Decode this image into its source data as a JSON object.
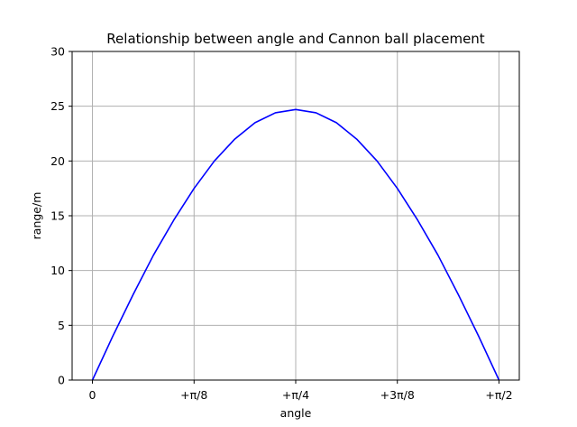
{
  "chart_data": {
    "type": "line",
    "title": "Relationship between angle and Cannon ball placement",
    "xlabel": "angle",
    "ylabel": "range/m",
    "xlim": [
      -0.0785,
      1.6493
    ],
    "ylim": [
      0,
      30
    ],
    "grid": true,
    "x_ticks": [
      {
        "value": 0,
        "label": "0"
      },
      {
        "value": 0.3927,
        "label": "+π/8"
      },
      {
        "value": 0.7854,
        "label": "+π/4"
      },
      {
        "value": 1.1781,
        "label": "+3π/8"
      },
      {
        "value": 1.5708,
        "label": "+π/2"
      }
    ],
    "y_ticks": [
      0,
      5,
      10,
      15,
      20,
      25,
      30
    ],
    "series": [
      {
        "color": "#0000ff",
        "x": [
          0,
          0.0785,
          0.1571,
          0.2356,
          0.3142,
          0.3927,
          0.4712,
          0.5498,
          0.6283,
          0.7069,
          0.7854,
          0.8639,
          0.9425,
          1.021,
          1.0996,
          1.1781,
          1.2566,
          1.3352,
          1.4137,
          1.4923,
          1.5708
        ],
        "y": [
          0,
          4.0,
          7.8,
          11.4,
          14.6,
          17.5,
          20.0,
          22.0,
          23.5,
          24.4,
          24.7,
          24.4,
          23.5,
          22.0,
          20.0,
          17.5,
          14.6,
          11.4,
          7.8,
          4.0,
          0
        ]
      }
    ],
    "colors": {
      "line": "#0000ff",
      "grid": "#b0b0b0",
      "axis": "#000000"
    }
  }
}
